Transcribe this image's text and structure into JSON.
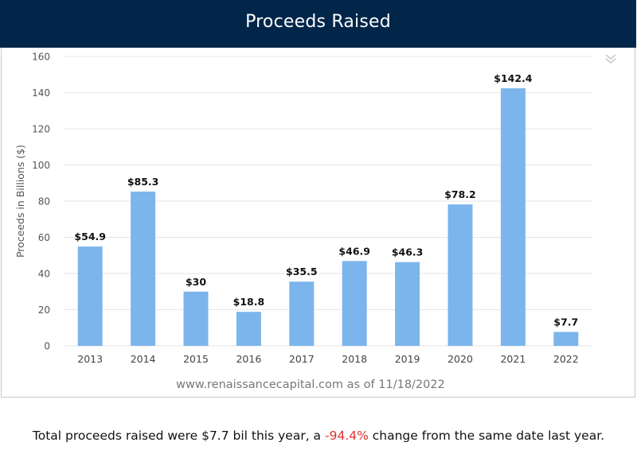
{
  "header": {
    "title": "Proceeds Raised"
  },
  "source_note": "www.renaissancecapital.com as of 11/18/2022",
  "summary": {
    "prefix": "Total proceeds raised were $7.7 bil this year, a ",
    "change": "-94.4%",
    "suffix": " change from the same date last year."
  },
  "colors": {
    "header_bg": "#02264a",
    "bar": "#7cb5ec",
    "negative": "#e0312f",
    "grid": "#e6e6e6"
  },
  "icons": {
    "menu": "double-chevron-down-icon"
  },
  "chart_data": {
    "type": "bar",
    "categories": [
      "2013",
      "2014",
      "2015",
      "2016",
      "2017",
      "2018",
      "2019",
      "2020",
      "2021",
      "2022"
    ],
    "values": [
      54.9,
      85.3,
      30,
      18.8,
      35.5,
      46.9,
      46.3,
      78.2,
      142.4,
      7.7
    ],
    "data_labels": [
      "$54.9",
      "$85.3",
      "$30",
      "$18.8",
      "$35.5",
      "$46.9",
      "$46.3",
      "$78.2",
      "$142.4",
      "$7.7"
    ],
    "ylabel": "Proceeds in Billions ($)",
    "ylim": [
      0,
      160
    ],
    "yticks": [
      0,
      20,
      40,
      60,
      80,
      100,
      120,
      140,
      160
    ],
    "grid": true,
    "legend": false
  }
}
